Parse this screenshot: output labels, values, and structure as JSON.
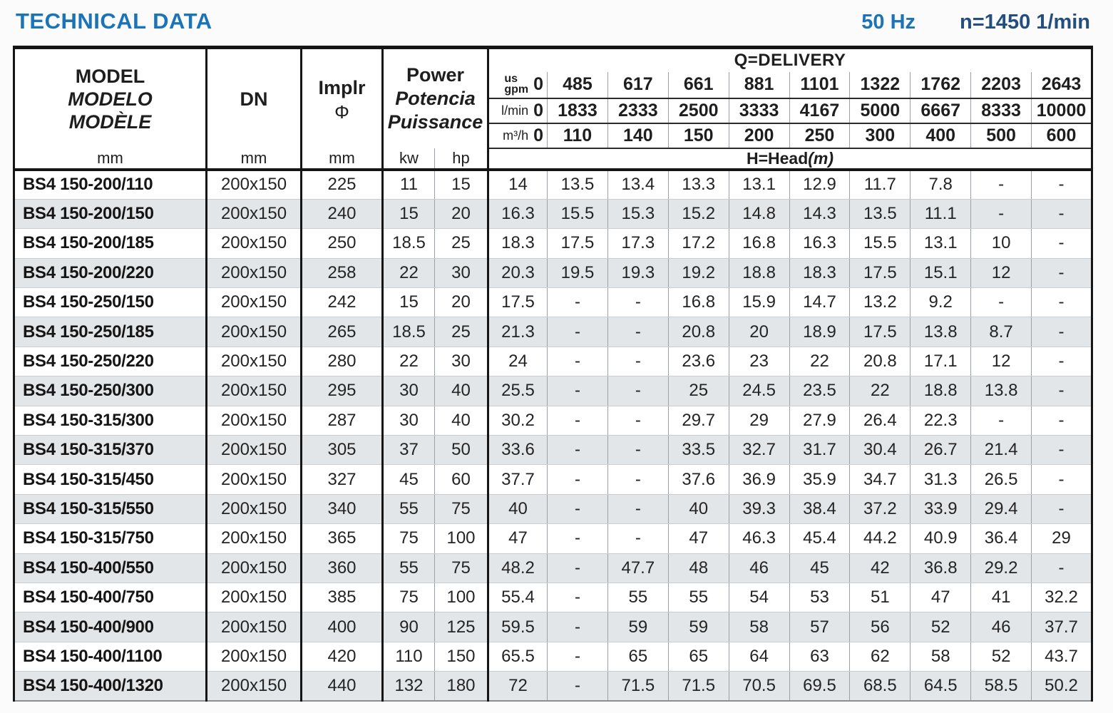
{
  "header": {
    "title": "TECHNICAL DATA",
    "frequency": "50 Hz",
    "speed": "n=1450 1/min"
  },
  "table": {
    "model_header": {
      "line1": "MODEL",
      "line2": "MODELO",
      "line3": "MODÈLE",
      "unit": "mm"
    },
    "dn_header": {
      "label": "DN",
      "unit": "mm"
    },
    "impeller_header": {
      "label": "Implr",
      "symbol": "Φ",
      "unit": "mm"
    },
    "power_header": {
      "line1": "Power",
      "line2": "Potencia",
      "line3": "Puissance",
      "kw": "kw",
      "hp": "hp"
    },
    "delivery": {
      "title": "Q=DELIVERY",
      "gpm": {
        "unit_line1": "us",
        "unit_line2": "gpm",
        "zero": "0",
        "values": [
          "485",
          "617",
          "661",
          "881",
          "1101",
          "1322",
          "1762",
          "2203",
          "2643"
        ]
      },
      "lmin": {
        "unit": "l/min",
        "zero": "0",
        "values": [
          "1833",
          "2333",
          "2500",
          "3333",
          "4167",
          "5000",
          "6667",
          "8333",
          "10000"
        ]
      },
      "m3h": {
        "unit": "m³/h",
        "zero": "0",
        "values": [
          "110",
          "140",
          "150",
          "200",
          "250",
          "300",
          "400",
          "500",
          "600"
        ]
      },
      "head_label": "H=Head",
      "head_unit": "(m)"
    },
    "rows": [
      {
        "model": "BS4 150-200/110",
        "dn": "200x150",
        "implr": "225",
        "kw": "11",
        "hp": "15",
        "q": [
          "14",
          "13.5",
          "13.4",
          "13.3",
          "13.1",
          "12.9",
          "11.7",
          "7.8",
          "-",
          "-"
        ]
      },
      {
        "model": "BS4 150-200/150",
        "dn": "200x150",
        "implr": "240",
        "kw": "15",
        "hp": "20",
        "q": [
          "16.3",
          "15.5",
          "15.3",
          "15.2",
          "14.8",
          "14.3",
          "13.5",
          "11.1",
          "-",
          "-"
        ]
      },
      {
        "model": "BS4 150-200/185",
        "dn": "200x150",
        "implr": "250",
        "kw": "18.5",
        "hp": "25",
        "q": [
          "18.3",
          "17.5",
          "17.3",
          "17.2",
          "16.8",
          "16.3",
          "15.5",
          "13.1",
          "10",
          "-"
        ]
      },
      {
        "model": "BS4 150-200/220",
        "dn": "200x150",
        "implr": "258",
        "kw": "22",
        "hp": "30",
        "q": [
          "20.3",
          "19.5",
          "19.3",
          "19.2",
          "18.8",
          "18.3",
          "17.5",
          "15.1",
          "12",
          "-"
        ]
      },
      {
        "model": "BS4 150-250/150",
        "dn": "200x150",
        "implr": "242",
        "kw": "15",
        "hp": "20",
        "q": [
          "17.5",
          "-",
          "-",
          "16.8",
          "15.9",
          "14.7",
          "13.2",
          "9.2",
          "-",
          "-"
        ]
      },
      {
        "model": "BS4 150-250/185",
        "dn": "200x150",
        "implr": "265",
        "kw": "18.5",
        "hp": "25",
        "q": [
          "21.3",
          "-",
          "-",
          "20.8",
          "20",
          "18.9",
          "17.5",
          "13.8",
          "8.7",
          "-"
        ]
      },
      {
        "model": "BS4 150-250/220",
        "dn": "200x150",
        "implr": "280",
        "kw": "22",
        "hp": "30",
        "q": [
          "24",
          "-",
          "-",
          "23.6",
          "23",
          "22",
          "20.8",
          "17.1",
          "12",
          "-"
        ]
      },
      {
        "model": "BS4 150-250/300",
        "dn": "200x150",
        "implr": "295",
        "kw": "30",
        "hp": "40",
        "q": [
          "25.5",
          "-",
          "-",
          "25",
          "24.5",
          "23.5",
          "22",
          "18.8",
          "13.8",
          "-"
        ]
      },
      {
        "model": "BS4 150-315/300",
        "dn": "200x150",
        "implr": "287",
        "kw": "30",
        "hp": "40",
        "q": [
          "30.2",
          "-",
          "-",
          "29.7",
          "29",
          "27.9",
          "26.4",
          "22.3",
          "-",
          "-"
        ]
      },
      {
        "model": "BS4 150-315/370",
        "dn": "200x150",
        "implr": "305",
        "kw": "37",
        "hp": "50",
        "q": [
          "33.6",
          "-",
          "-",
          "33.5",
          "32.7",
          "31.7",
          "30.4",
          "26.7",
          "21.4",
          "-"
        ]
      },
      {
        "model": "BS4 150-315/450",
        "dn": "200x150",
        "implr": "327",
        "kw": "45",
        "hp": "60",
        "q": [
          "37.7",
          "-",
          "-",
          "37.6",
          "36.9",
          "35.9",
          "34.7",
          "31.3",
          "26.5",
          "-"
        ]
      },
      {
        "model": "BS4 150-315/550",
        "dn": "200x150",
        "implr": "340",
        "kw": "55",
        "hp": "75",
        "q": [
          "40",
          "-",
          "-",
          "40",
          "39.3",
          "38.4",
          "37.2",
          "33.9",
          "29.4",
          "-"
        ]
      },
      {
        "model": "BS4 150-315/750",
        "dn": "200x150",
        "implr": "365",
        "kw": "75",
        "hp": "100",
        "q": [
          "47",
          "-",
          "-",
          "47",
          "46.3",
          "45.4",
          "44.2",
          "40.9",
          "36.4",
          "29"
        ]
      },
      {
        "model": "BS4 150-400/550",
        "dn": "200x150",
        "implr": "360",
        "kw": "55",
        "hp": "75",
        "q": [
          "48.2",
          "-",
          "47.7",
          "48",
          "46",
          "45",
          "42",
          "36.8",
          "29.2",
          "-"
        ]
      },
      {
        "model": "BS4 150-400/750",
        "dn": "200x150",
        "implr": "385",
        "kw": "75",
        "hp": "100",
        "q": [
          "55.4",
          "-",
          "55",
          "55",
          "54",
          "53",
          "51",
          "47",
          "41",
          "32.2"
        ]
      },
      {
        "model": "BS4 150-400/900",
        "dn": "200x150",
        "implr": "400",
        "kw": "90",
        "hp": "125",
        "q": [
          "59.5",
          "-",
          "59",
          "59",
          "58",
          "57",
          "56",
          "52",
          "46",
          "37.7"
        ]
      },
      {
        "model": "BS4 150-400/1100",
        "dn": "200x150",
        "implr": "420",
        "kw": "110",
        "hp": "150",
        "q": [
          "65.5",
          "-",
          "65",
          "65",
          "64",
          "63",
          "62",
          "58",
          "52",
          "43.7"
        ]
      },
      {
        "model": "BS4 150-400/1320",
        "dn": "200x150",
        "implr": "440",
        "kw": "132",
        "hp": "180",
        "q": [
          "72",
          "-",
          "71.5",
          "71.5",
          "70.5",
          "69.5",
          "68.5",
          "64.5",
          "58.5",
          "50.2"
        ]
      }
    ]
  }
}
